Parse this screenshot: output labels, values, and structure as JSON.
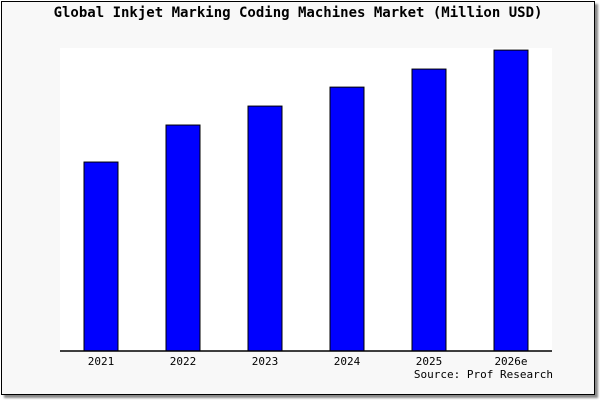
{
  "chart_data": {
    "type": "bar",
    "title": "Global Inkjet Marking Coding Machines Market (Million USD)",
    "categories": [
      "2021",
      "2022",
      "2023",
      "2024",
      "2025",
      "2026e"
    ],
    "values": [
      62.8,
      75.1,
      81.4,
      87.7,
      93.7,
      100
    ],
    "ylim": [
      0,
      100.7
    ],
    "xlabel": "",
    "ylabel": "",
    "grid": false,
    "bar_color": "#0000ff",
    "source": "Source: Prof Research"
  }
}
